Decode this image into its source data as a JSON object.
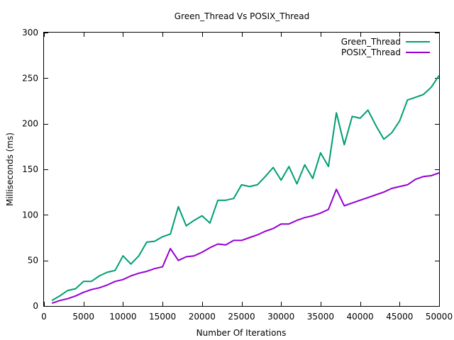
{
  "chart_data": {
    "type": "line",
    "title": "Green_Thread Vs POSIX_Thread",
    "xlabel": "Number Of Iterations",
    "ylabel": "Milliseconds (ms)",
    "xlim": [
      0,
      50000
    ],
    "ylim": [
      0,
      300
    ],
    "xticks": [
      0,
      5000,
      10000,
      15000,
      20000,
      25000,
      30000,
      35000,
      40000,
      45000,
      50000
    ],
    "xtick_labels": [
      "0",
      "5000",
      "10000",
      "15000",
      "20000",
      "25000",
      "30000",
      "35000",
      "40000",
      "45000",
      "50000"
    ],
    "yticks": [
      0,
      50,
      100,
      150,
      200,
      250,
      300
    ],
    "ytick_labels": [
      "0",
      "50",
      "100",
      "150",
      "200",
      "250",
      "300"
    ],
    "grid": false,
    "legend_position": "top-right",
    "x": [
      1000,
      2000,
      3000,
      4000,
      5000,
      6000,
      7000,
      8000,
      9000,
      10000,
      11000,
      12000,
      13000,
      14000,
      15000,
      16000,
      17000,
      18000,
      19000,
      20000,
      21000,
      22000,
      23000,
      24000,
      25000,
      26000,
      27000,
      28000,
      29000,
      30000,
      31000,
      32000,
      33000,
      34000,
      35000,
      36000,
      37000,
      38000,
      39000,
      40000,
      41000,
      42000,
      43000,
      44000,
      45000,
      46000,
      47000,
      48000,
      49000,
      50000
    ],
    "series": [
      {
        "name": "Green_Thread",
        "color": "#009e73",
        "values": [
          6,
          11,
          17,
          19,
          27,
          27,
          33,
          37,
          39,
          55,
          46,
          55,
          70,
          71,
          76,
          79,
          109,
          88,
          94,
          99,
          91,
          116,
          116,
          118,
          133,
          131,
          133,
          142,
          152,
          138,
          153,
          134,
          155,
          140,
          168,
          153,
          212,
          177,
          208,
          206,
          215,
          198,
          183,
          190,
          203,
          226,
          229,
          232,
          240,
          253
        ]
      },
      {
        "name": "POSIX_Thread",
        "color": "#9400d3",
        "values": [
          3,
          6,
          8,
          11,
          15,
          18,
          20,
          23,
          27,
          29,
          33,
          36,
          38,
          41,
          43,
          63,
          50,
          54,
          55,
          59,
          64,
          68,
          67,
          72,
          72,
          75,
          78,
          82,
          85,
          90,
          90,
          94,
          97,
          99,
          102,
          106,
          128,
          110,
          113,
          116,
          119,
          122,
          125,
          129,
          131,
          133,
          139,
          142,
          143,
          146
        ]
      }
    ]
  }
}
